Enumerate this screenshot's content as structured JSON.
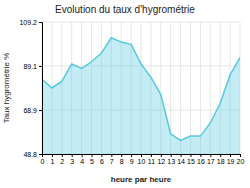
{
  "chart_data": {
    "type": "area",
    "title": "Evolution du taux d'hygrométrie",
    "x_label": "heure par heure",
    "y_label": "Taux hygrométrie %",
    "x": [
      0,
      1,
      2,
      3,
      4,
      5,
      6,
      7,
      8,
      9,
      10,
      11,
      12,
      13,
      14,
      15,
      16,
      17,
      18,
      19,
      20
    ],
    "values": [
      83,
      79,
      82,
      90,
      88,
      91,
      95,
      102,
      100,
      99,
      90,
      84,
      76,
      58,
      55,
      57,
      57,
      63,
      72,
      85,
      93
    ],
    "color": "#56c8e0",
    "xlim": [
      0,
      20
    ],
    "ylim": [
      48.8,
      109.2
    ],
    "xticks": [
      0,
      1,
      2,
      3,
      4,
      5,
      6,
      7,
      8,
      9,
      10,
      11,
      12,
      13,
      14,
      15,
      16,
      17,
      18,
      19,
      20
    ],
    "yticks": [
      48.8,
      68.9,
      89.1,
      109.2
    ],
    "grid": true
  }
}
